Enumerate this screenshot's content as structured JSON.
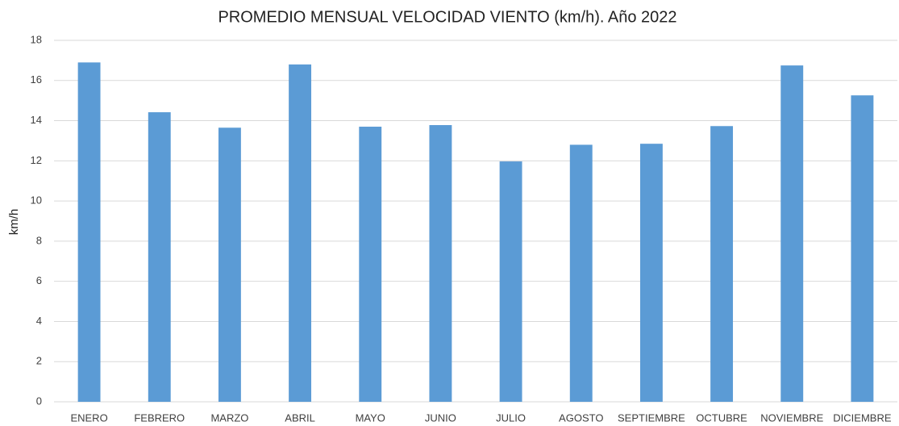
{
  "chart_data": {
    "type": "bar",
    "title": "PROMEDIO MENSUAL VELOCIDAD VIENTO (km/h). Año 2022",
    "y_label": "km/h",
    "categories": [
      "ENERO",
      "FEBRERO",
      "MARZO",
      "ABRIL",
      "MAYO",
      "JUNIO",
      "JULIO",
      "AGOSTO",
      "SEPTIEMBRE",
      "OCTUBRE",
      "NOVIEMBRE",
      "DICIEMBRE"
    ],
    "values": [
      16.9,
      14.42,
      13.65,
      16.8,
      13.7,
      13.78,
      11.97,
      12.8,
      12.85,
      13.73,
      16.75,
      15.26
    ],
    "color": "#5b9bd5",
    "ylim": [
      0,
      18
    ],
    "yticks": [
      0,
      2,
      4,
      6,
      8,
      10,
      12,
      14,
      16,
      18
    ],
    "grid": true
  }
}
